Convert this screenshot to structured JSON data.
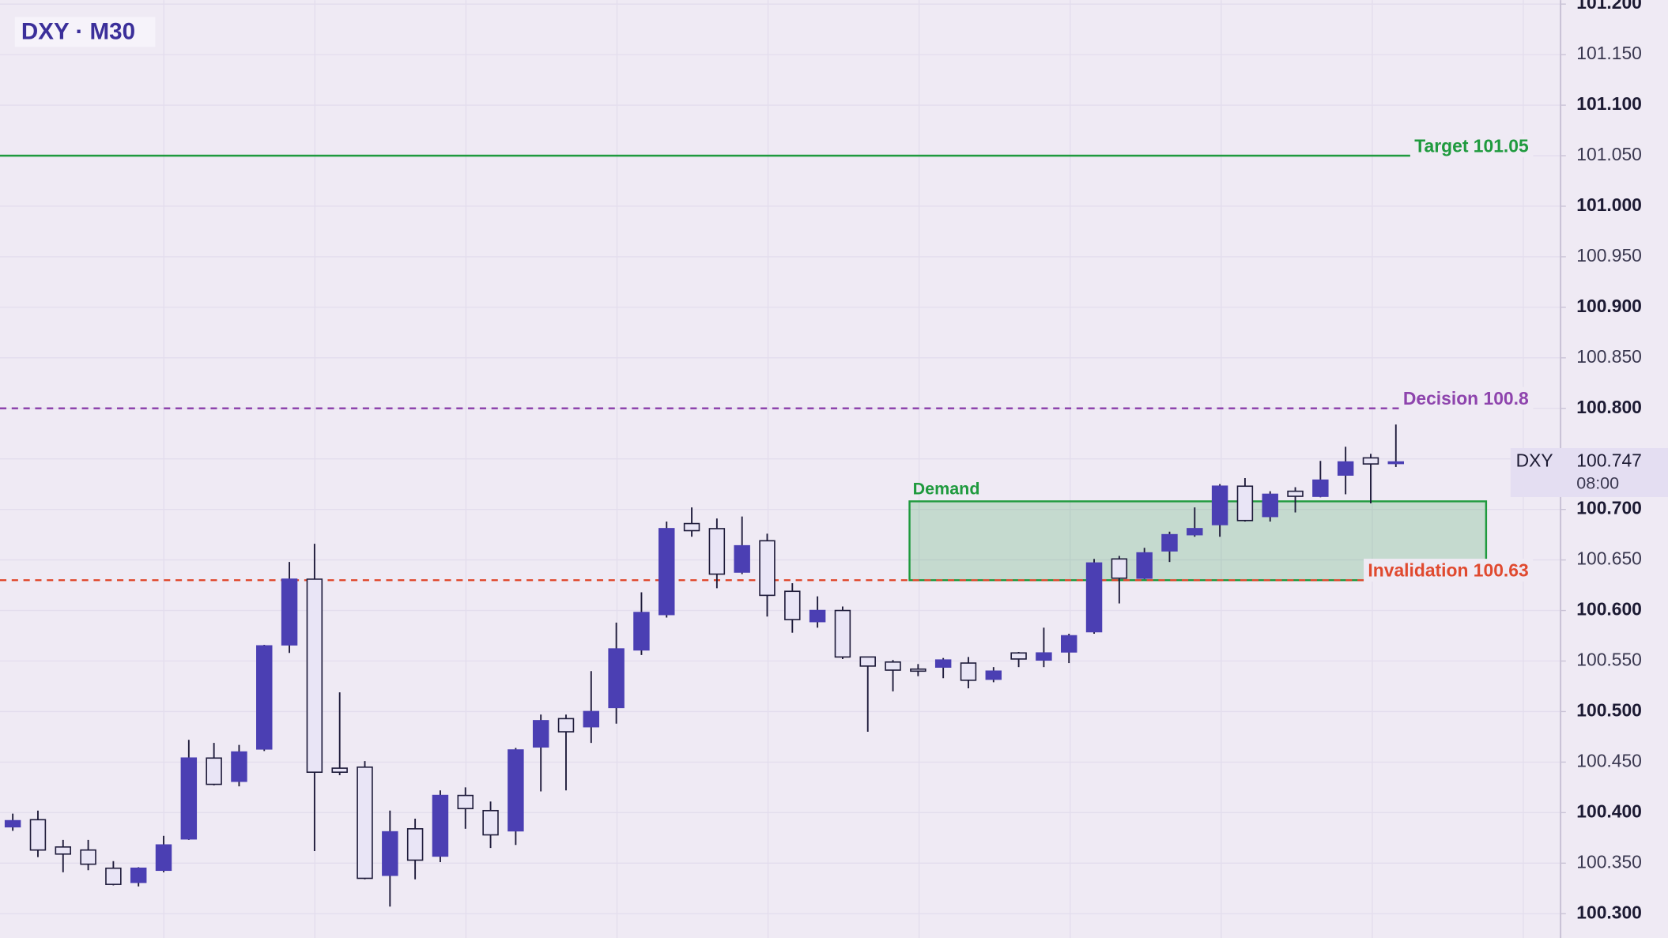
{
  "chart_data": {
    "type": "candlestick",
    "title": "DXY · M30",
    "ylim": [
      100.276,
      101.204
    ],
    "yticks": [
      {
        "value": 100.3,
        "label": "100.300"
      },
      {
        "value": 100.35,
        "label": "100.350"
      },
      {
        "value": 100.4,
        "label": "100.400"
      },
      {
        "value": 100.45,
        "label": "100.450"
      },
      {
        "value": 100.5,
        "label": "100.500"
      },
      {
        "value": 100.55,
        "label": "100.550"
      },
      {
        "value": 100.6,
        "label": "100.600"
      },
      {
        "value": 100.65,
        "label": "100.650"
      },
      {
        "value": 100.7,
        "label": "100.700"
      },
      {
        "value": 100.75,
        "label": "100.750"
      },
      {
        "value": 100.8,
        "label": "100.800"
      },
      {
        "value": 100.85,
        "label": "100.850"
      },
      {
        "value": 100.9,
        "label": "100.900"
      },
      {
        "value": 100.95,
        "label": "100.950"
      },
      {
        "value": 101.0,
        "label": "101.000"
      },
      {
        "value": 101.05,
        "label": "101.050"
      },
      {
        "value": 101.1,
        "label": "101.100"
      },
      {
        "value": 101.15,
        "label": "101.150"
      },
      {
        "value": 101.2,
        "label": "101.200"
      }
    ],
    "grid": true,
    "up_color": "#4b3fb3",
    "down_color": "#e9e5f6",
    "open": [
      100.386,
      100.393,
      100.366,
      100.363,
      100.345,
      100.331,
      100.343,
      100.374,
      100.454,
      100.431,
      100.463,
      100.566,
      100.631,
      100.444,
      100.445,
      100.338,
      100.384,
      100.357,
      100.417,
      100.402,
      100.382,
      100.465,
      100.493,
      100.485,
      100.504,
      100.561,
      100.596,
      100.686,
      100.681,
      100.638,
      100.669,
      100.619,
      100.589,
      100.6,
      100.554,
      100.549,
      100.542,
      100.544,
      100.548,
      100.532,
      100.558,
      100.551,
      100.559,
      100.579,
      100.651,
      100.632,
      100.659,
      100.675,
      100.685,
      100.723,
      100.693,
      100.718,
      100.713,
      100.734,
      100.751,
      100.746
    ],
    "high": [
      100.399,
      100.402,
      100.373,
      100.373,
      100.352,
      100.346,
      100.377,
      100.472,
      100.469,
      100.467,
      100.566,
      100.648,
      100.666,
      100.519,
      100.451,
      100.402,
      100.394,
      100.422,
      100.425,
      100.411,
      100.464,
      100.497,
      100.497,
      100.54,
      100.588,
      100.618,
      100.688,
      100.702,
      100.691,
      100.693,
      100.676,
      100.627,
      100.614,
      100.604,
      100.554,
      100.551,
      100.547,
      100.553,
      100.554,
      100.544,
      100.559,
      100.583,
      100.577,
      100.651,
      100.654,
      100.662,
      100.678,
      100.702,
      100.725,
      100.731,
      100.718,
      100.722,
      100.748,
      100.762,
      100.755,
      100.784
    ],
    "low": [
      100.382,
      100.356,
      100.341,
      100.343,
      100.328,
      100.327,
      100.341,
      100.373,
      100.427,
      100.426,
      100.461,
      100.558,
      100.362,
      100.437,
      100.334,
      100.307,
      100.334,
      100.351,
      100.384,
      100.365,
      100.368,
      100.421,
      100.422,
      100.469,
      100.488,
      100.556,
      100.593,
      100.673,
      100.622,
      100.636,
      100.594,
      100.578,
      100.583,
      100.552,
      100.48,
      100.52,
      100.535,
      100.533,
      100.523,
      100.529,
      100.544,
      100.544,
      100.548,
      100.577,
      100.607,
      100.631,
      100.648,
      100.673,
      100.673,
      100.688,
      100.688,
      100.697,
      100.712,
      100.715,
      100.706,
      100.742
    ],
    "close": [
      100.392,
      100.363,
      100.359,
      100.349,
      100.329,
      100.345,
      100.368,
      100.454,
      100.428,
      100.46,
      100.565,
      100.631,
      100.44,
      100.44,
      100.335,
      100.381,
      100.353,
      100.417,
      100.404,
      100.378,
      100.462,
      100.491,
      100.48,
      100.5,
      100.562,
      100.598,
      100.681,
      100.679,
      100.636,
      100.664,
      100.615,
      100.591,
      100.6,
      100.554,
      100.545,
      100.541,
      100.54,
      100.551,
      100.531,
      100.54,
      100.552,
      100.558,
      100.575,
      100.647,
      100.632,
      100.657,
      100.675,
      100.681,
      100.723,
      100.689,
      100.715,
      100.713,
      100.729,
      100.747,
      100.745,
      100.747
    ],
    "levels": [
      {
        "label": "Target 101.05",
        "value": 101.05,
        "color": "#1f9a3e",
        "dashed": false
      },
      {
        "label": "Decision 100.8",
        "value": 100.8,
        "color": "#8e44ad",
        "dashed": true
      },
      {
        "label": "Invalidation 100.63",
        "value": 100.63,
        "color": "#e04a2f",
        "dashed": true
      }
    ],
    "zone": {
      "label": "Demand",
      "low": 100.63,
      "high": 100.708,
      "color": "#1f9a3e"
    },
    "last_price": 100.747,
    "symbol_tag": "DXY",
    "countdown": "08:00"
  }
}
